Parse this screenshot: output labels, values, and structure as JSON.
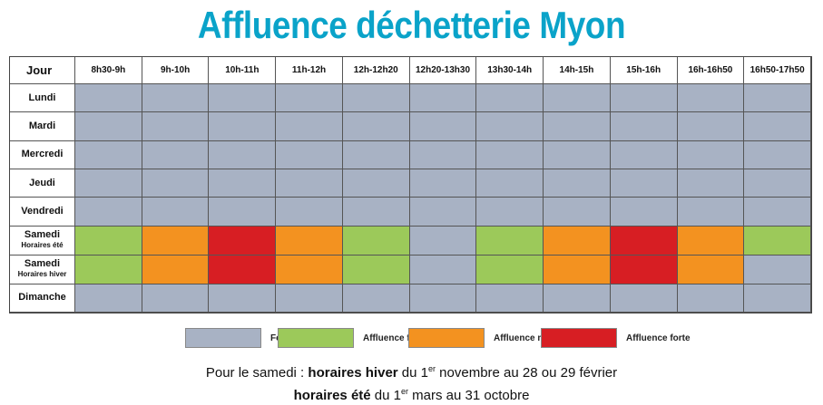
{
  "title": "Affluence déchetterie Myon",
  "colors": {
    "fermee": "#a8b2c4",
    "faible": "#9cc95a",
    "moyenne": "#f39220",
    "forte": "#d71e23"
  },
  "chart_data": {
    "type": "heatmap",
    "title": "Affluence déchetterie Myon",
    "corner_label": "Jour",
    "columns": [
      "8h30-9h",
      "9h-10h",
      "10h-11h",
      "11h-12h",
      "12h-12h20",
      "12h20-13h30",
      "13h30-14h",
      "14h-15h",
      "15h-16h",
      "16h-16h50",
      "16h50-17h50"
    ],
    "rows": [
      {
        "label": "Lundi",
        "sub": "",
        "values": [
          "fermee",
          "fermee",
          "fermee",
          "fermee",
          "fermee",
          "fermee",
          "fermee",
          "fermee",
          "fermee",
          "fermee",
          "fermee"
        ]
      },
      {
        "label": "Mardi",
        "sub": "",
        "values": [
          "fermee",
          "fermee",
          "fermee",
          "fermee",
          "fermee",
          "fermee",
          "fermee",
          "fermee",
          "fermee",
          "fermee",
          "fermee"
        ]
      },
      {
        "label": "Mercredi",
        "sub": "",
        "values": [
          "fermee",
          "fermee",
          "fermee",
          "fermee",
          "fermee",
          "fermee",
          "fermee",
          "fermee",
          "fermee",
          "fermee",
          "fermee"
        ]
      },
      {
        "label": "Jeudi",
        "sub": "",
        "values": [
          "fermee",
          "fermee",
          "fermee",
          "fermee",
          "fermee",
          "fermee",
          "fermee",
          "fermee",
          "fermee",
          "fermee",
          "fermee"
        ]
      },
      {
        "label": "Vendredi",
        "sub": "",
        "values": [
          "fermee",
          "fermee",
          "fermee",
          "fermee",
          "fermee",
          "fermee",
          "fermee",
          "fermee",
          "fermee",
          "fermee",
          "fermee"
        ]
      },
      {
        "label": "Samedi",
        "sub": "Horaires été",
        "values": [
          "faible",
          "moyenne",
          "forte",
          "moyenne",
          "faible",
          "fermee",
          "faible",
          "moyenne",
          "forte",
          "moyenne",
          "faible"
        ]
      },
      {
        "label": "Samedi",
        "sub": "Horaires hiver",
        "values": [
          "faible",
          "moyenne",
          "forte",
          "moyenne",
          "faible",
          "fermee",
          "faible",
          "moyenne",
          "forte",
          "moyenne",
          "fermee"
        ]
      },
      {
        "label": "Dimanche",
        "sub": "",
        "values": [
          "fermee",
          "fermee",
          "fermee",
          "fermee",
          "fermee",
          "fermee",
          "fermee",
          "fermee",
          "fermee",
          "fermee",
          "fermee"
        ]
      }
    ],
    "legend": [
      {
        "key": "fermee",
        "label": "Fermée"
      },
      {
        "key": "faible",
        "label": "Affluence faible"
      },
      {
        "key": "moyenne",
        "label": "Affluence moyenne"
      },
      {
        "key": "forte",
        "label": "Affluence forte"
      }
    ]
  },
  "notes": {
    "line1_prefix": "Pour le samedi : ",
    "line1_bold": "horaires hiver",
    "line1_mid": " du 1",
    "line1_sup": "er",
    "line1_suffix": " novembre au 28 ou 29 février",
    "line2_bold": "horaires été",
    "line2_mid": " du 1",
    "line2_sup": "er",
    "line2_suffix": " mars au 31 octobre"
  }
}
